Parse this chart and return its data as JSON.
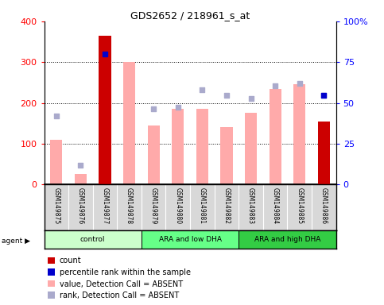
{
  "title": "GDS2652 / 218961_s_at",
  "samples": [
    "GSM149875",
    "GSM149876",
    "GSM149877",
    "GSM149878",
    "GSM149879",
    "GSM149880",
    "GSM149881",
    "GSM149882",
    "GSM149883",
    "GSM149884",
    "GSM149885",
    "GSM149886"
  ],
  "count_values": [
    null,
    null,
    365,
    null,
    null,
    null,
    null,
    null,
    null,
    null,
    null,
    155
  ],
  "value_absent": [
    110,
    25,
    null,
    300,
    145,
    185,
    185,
    140,
    175,
    235,
    245,
    null
  ],
  "rank_absent": [
    168,
    48,
    null,
    null,
    185,
    190,
    232,
    218,
    210,
    242,
    248,
    218
  ],
  "percentile_rank": [
    null,
    null,
    320,
    null,
    null,
    null,
    null,
    null,
    null,
    null,
    null,
    218
  ],
  "ylim_left": [
    0,
    400
  ],
  "ylim_right": [
    0,
    100
  ],
  "yticks_left": [
    0,
    100,
    200,
    300,
    400
  ],
  "yticks_right": [
    0,
    25,
    50,
    75,
    100
  ],
  "ytick_labels_right": [
    "0",
    "25",
    "50",
    "75",
    "100%"
  ],
  "bar_color_count": "#cc0000",
  "bar_color_absent": "#ffaaaa",
  "dot_color_rank_absent": "#aaaacc",
  "dot_color_percentile": "#0000cc",
  "group_colors": [
    "#ccffcc",
    "#66ff88",
    "#33cc44"
  ],
  "group_labels": [
    "control",
    "ARA and low DHA",
    "ARA and high DHA"
  ],
  "group_ranges": [
    [
      0,
      3
    ],
    [
      4,
      7
    ],
    [
      8,
      11
    ]
  ],
  "legend_items": [
    {
      "color": "#cc0000",
      "label": "count",
      "marker": "s"
    },
    {
      "color": "#0000cc",
      "label": "percentile rank within the sample",
      "marker": "s"
    },
    {
      "color": "#ffaaaa",
      "label": "value, Detection Call = ABSENT",
      "marker": "s"
    },
    {
      "color": "#aaaacc",
      "label": "rank, Detection Call = ABSENT",
      "marker": "s"
    }
  ]
}
